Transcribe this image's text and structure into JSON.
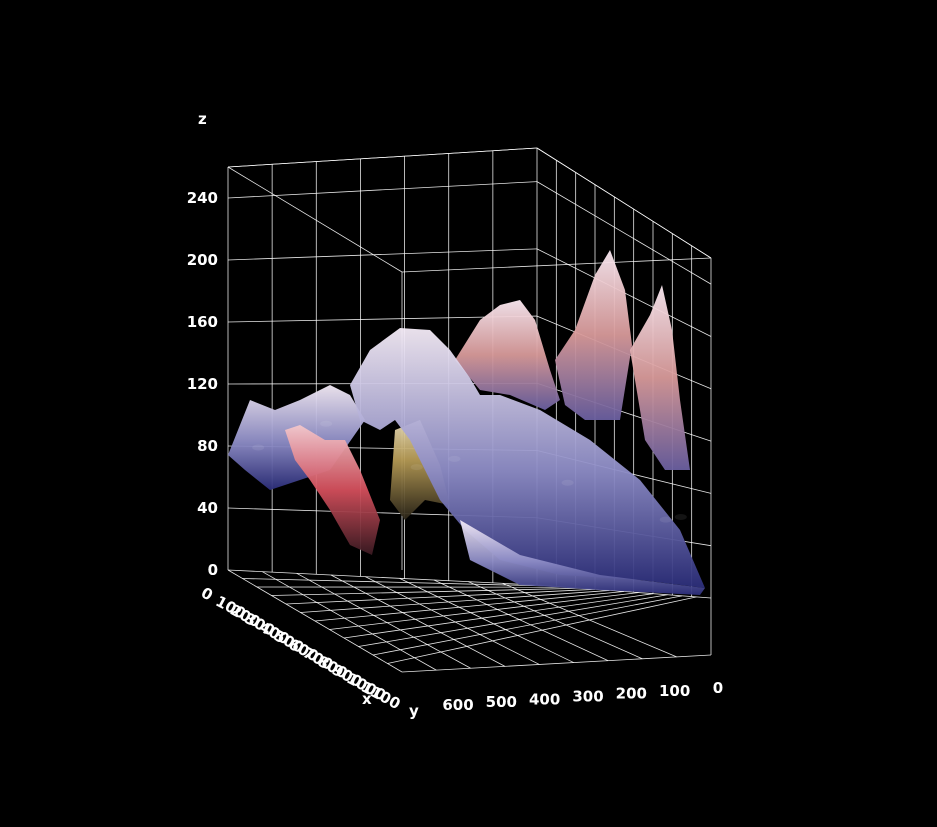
{
  "chart_data": {
    "type": "surface",
    "xlabel": "x",
    "ylabel": "y",
    "zlabel": "z",
    "x_ticks": [
      "0",
      "100",
      "200",
      "300",
      "400",
      "500",
      "600",
      "700",
      "800",
      "900",
      "1000",
      "1100"
    ],
    "y_ticks": [
      "600",
      "500",
      "400",
      "300",
      "200",
      "100",
      "0"
    ],
    "z_ticks": [
      "0",
      "40",
      "80",
      "120",
      "160",
      "200",
      "240"
    ],
    "xlim": [
      0,
      1100
    ],
    "ylim": [
      0,
      640
    ],
    "zlim": [
      0,
      260
    ],
    "background": "#000000",
    "grid": true,
    "colors": {
      "low": "#3b3d8f",
      "mid": "#c7c4e6",
      "high": "#f7e8f0",
      "accent_red": "#d9505a",
      "accent_gold": "#b89a50"
    },
    "surface_peaks": [
      {
        "x": 300,
        "y": 130,
        "z": 205
      },
      {
        "x": 150,
        "y": 40,
        "z": 165
      },
      {
        "x": 550,
        "y": 300,
        "z": 165
      },
      {
        "x": 850,
        "y": 450,
        "z": 140
      },
      {
        "x": 1050,
        "y": 600,
        "z": 100
      },
      {
        "x": 200,
        "y": 250,
        "z": 150
      },
      {
        "x": 600,
        "y": 580,
        "z": 95
      }
    ]
  }
}
